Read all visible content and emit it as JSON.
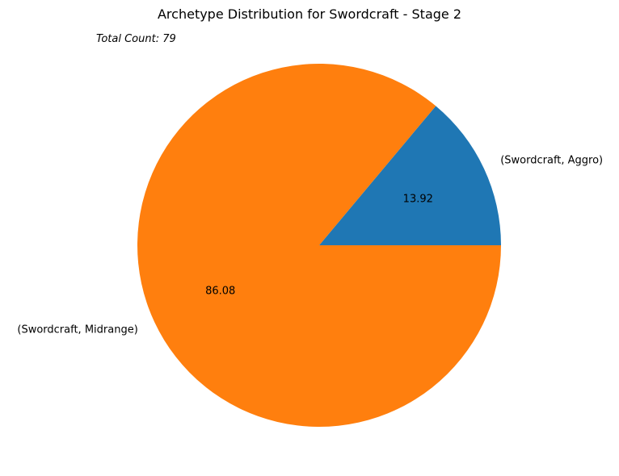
{
  "chart_data": {
    "type": "pie",
    "title": "Archetype Distribution for Swordcraft - Stage 2",
    "annotation": "Total Count: 79",
    "slices": [
      {
        "label": "(Swordcraft, Aggro)",
        "value": 13.92,
        "value_label": "13.92",
        "color": "#1f77b4"
      },
      {
        "label": "(Swordcraft, Midrange)",
        "value": 86.08,
        "value_label": "86.08",
        "color": "#ff7f0e"
      }
    ],
    "start_angle_deg": 0,
    "direction": "counterclockwise"
  }
}
